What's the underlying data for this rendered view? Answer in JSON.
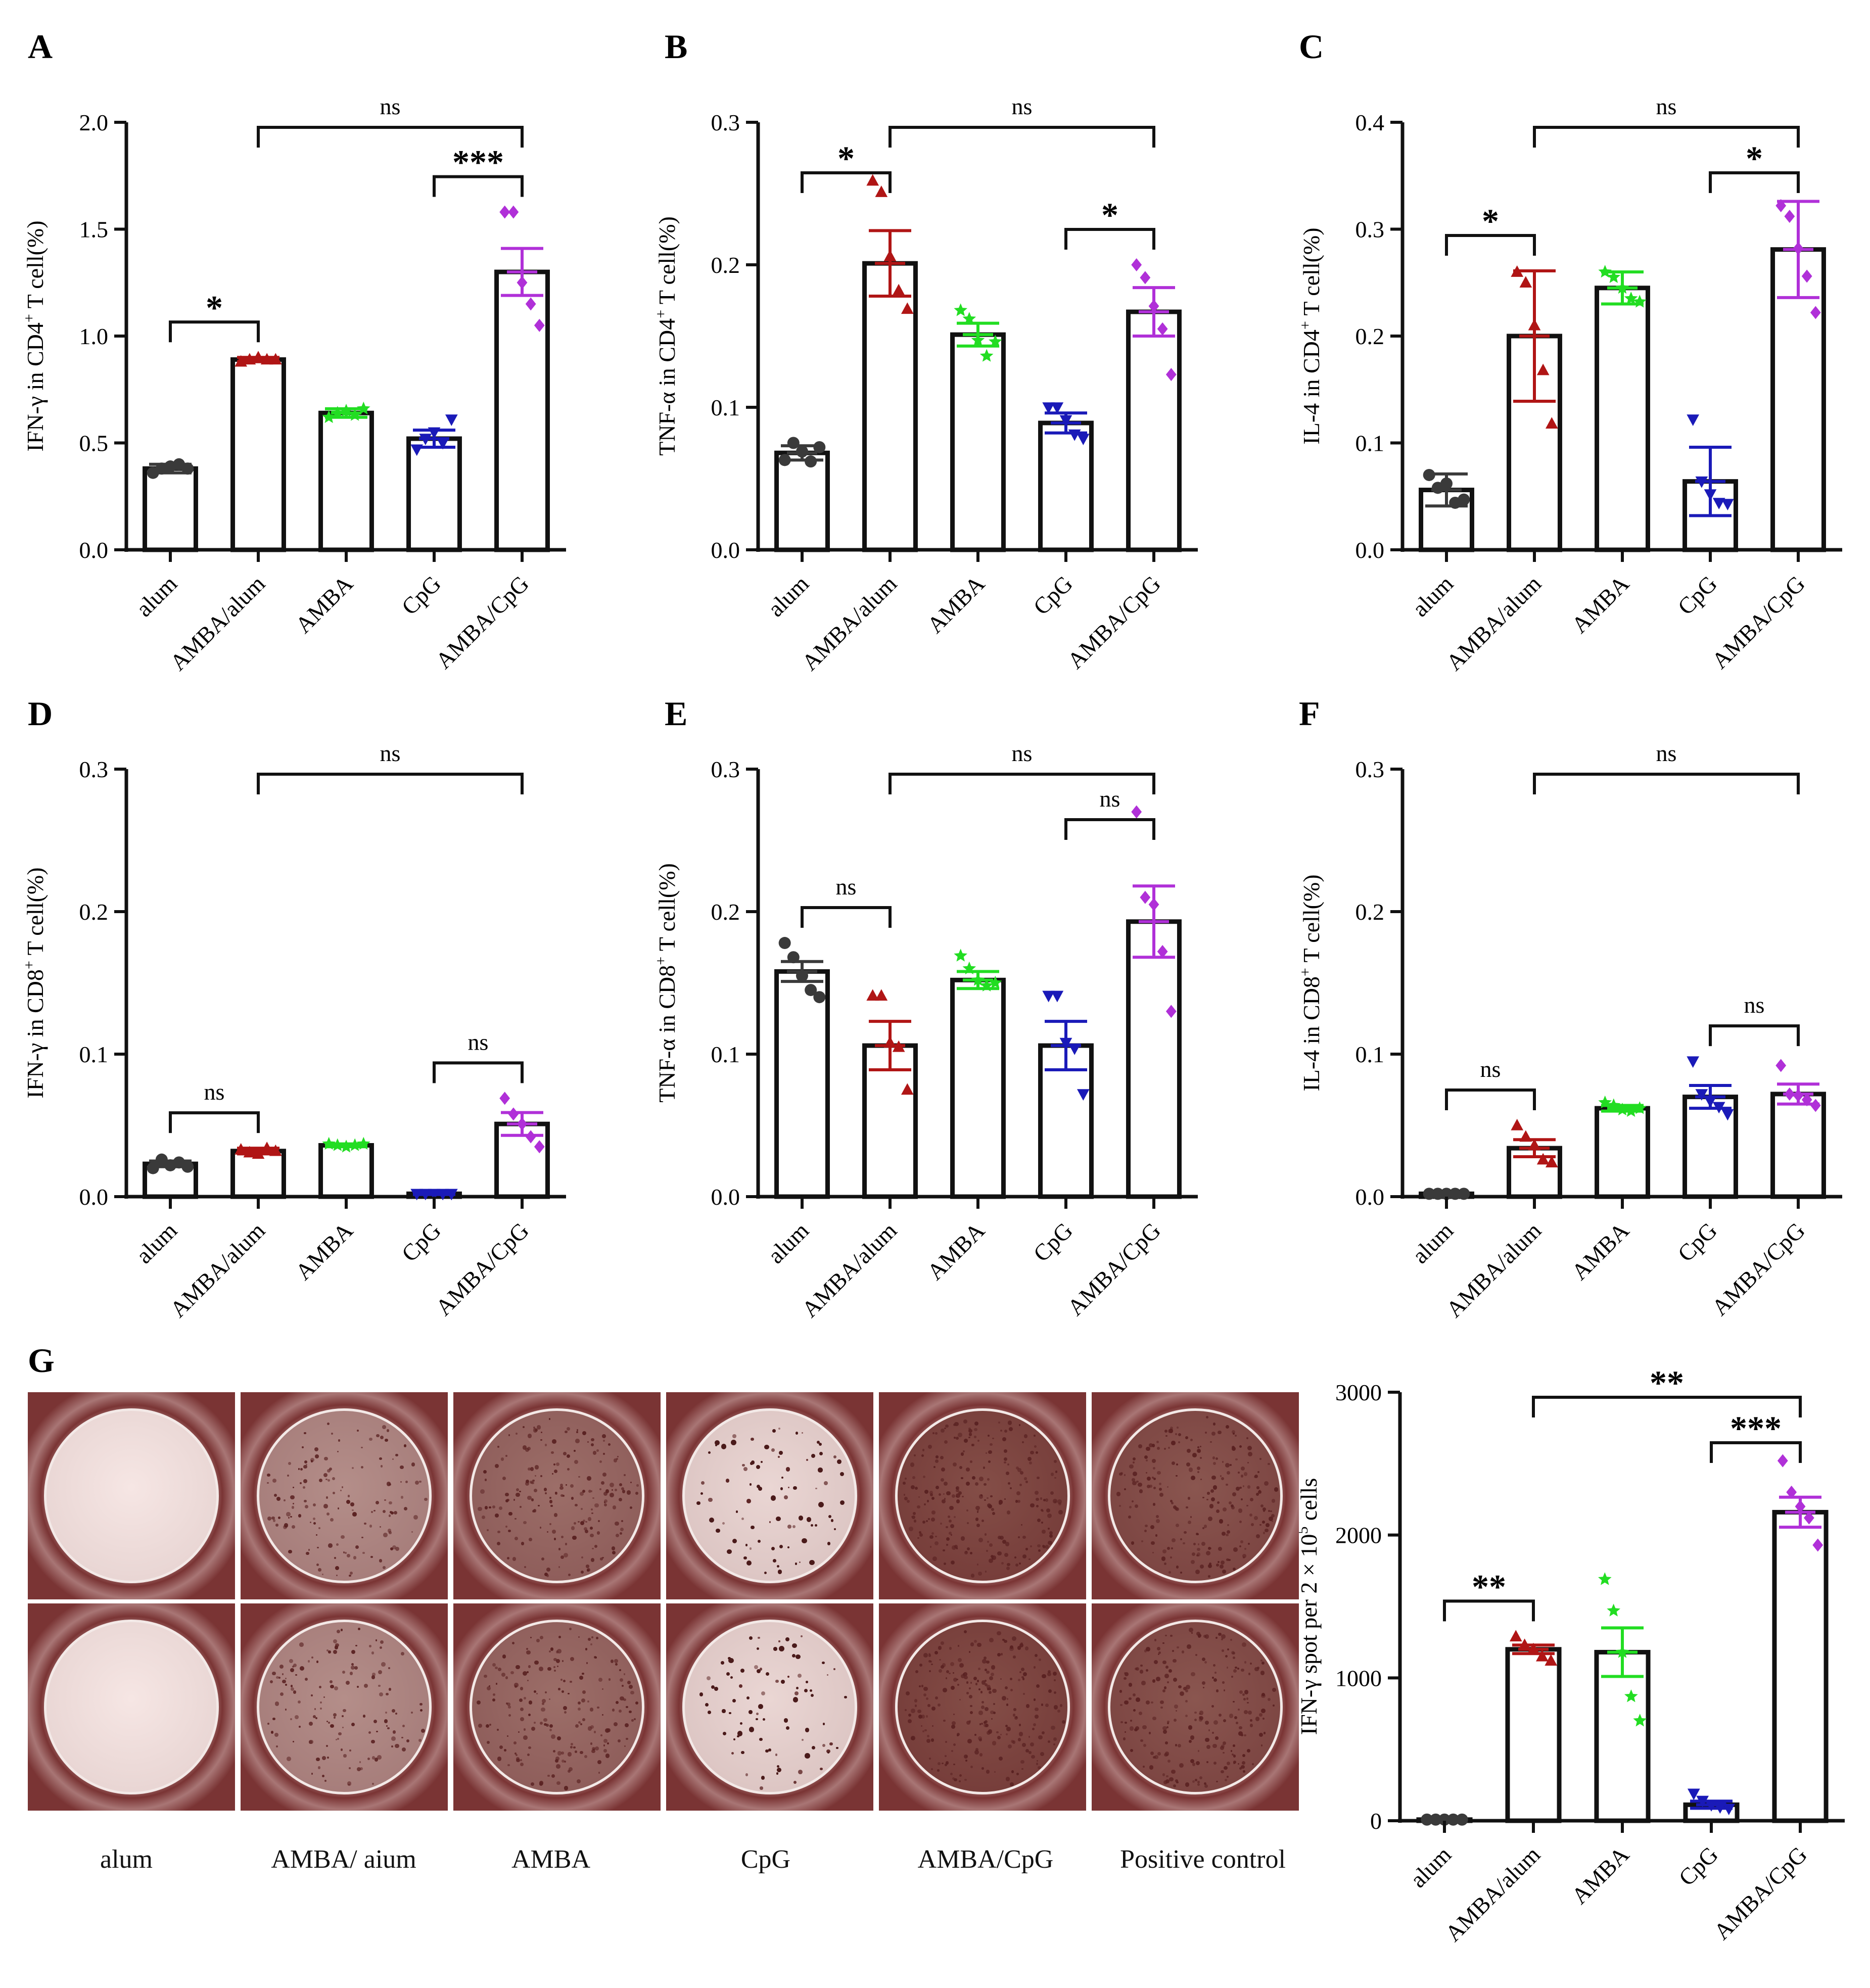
{
  "panels": [
    {
      "letter": "A",
      "ylabel_pre": "IFN-γ in CD4",
      "ylabel_sup": "+",
      "ylabel_post": " T cell(%)",
      "yticks": [
        "0.0",
        "0.5",
        "1.0",
        "1.5",
        "2.0"
      ],
      "comparisons": [
        {
          "label": "*",
          "from": 0,
          "to": 1
        },
        {
          "label": "***",
          "from": 3,
          "to": 4
        },
        {
          "label": "ns",
          "from": 1,
          "to": 4
        }
      ]
    },
    {
      "letter": "B",
      "ylabel_pre": "TNF-α in CD4",
      "ylabel_sup": "+",
      "ylabel_post": " T cell(%)",
      "yticks": [
        "0.0",
        "0.1",
        "0.2",
        "0.3"
      ],
      "comparisons": [
        {
          "label": "*",
          "from": 0,
          "to": 1
        },
        {
          "label": "*",
          "from": 3,
          "to": 4
        },
        {
          "label": "ns",
          "from": 1,
          "to": 4
        }
      ]
    },
    {
      "letter": "C",
      "ylabel_pre": "IL-4 in CD4",
      "ylabel_sup": "+",
      "ylabel_post": " T cell(%)",
      "yticks": [
        "0.0",
        "0.1",
        "0.2",
        "0.3",
        "0.4"
      ],
      "comparisons": [
        {
          "label": "*",
          "from": 0,
          "to": 1
        },
        {
          "label": "*",
          "from": 3,
          "to": 4
        },
        {
          "label": "ns",
          "from": 1,
          "to": 4
        }
      ]
    },
    {
      "letter": "D",
      "ylabel_pre": "IFN-γ in CD8",
      "ylabel_sup": "+",
      "ylabel_post": " T cell(%)",
      "yticks": [
        "0.0",
        "0.1",
        "0.2",
        "0.3"
      ],
      "comparisons": [
        {
          "label": "ns",
          "from": 0,
          "to": 1
        },
        {
          "label": "ns",
          "from": 3,
          "to": 4
        },
        {
          "label": "ns",
          "from": 1,
          "to": 4
        }
      ]
    },
    {
      "letter": "E",
      "ylabel_pre": "TNF-α in CD8",
      "ylabel_sup": "+",
      "ylabel_post": " T cell(%)",
      "yticks": [
        "0.0",
        "0.1",
        "0.2",
        "0.3"
      ],
      "comparisons": [
        {
          "label": "ns",
          "from": 0,
          "to": 1
        },
        {
          "label": "ns",
          "from": 3,
          "to": 4
        },
        {
          "label": "ns",
          "from": 1,
          "to": 4
        }
      ]
    },
    {
      "letter": "F",
      "ylabel_pre": "IL-4 in CD8",
      "ylabel_sup": "+",
      "ylabel_post": " T cell(%)",
      "yticks": [
        "0.0",
        "0.1",
        "0.2",
        "0.3"
      ],
      "comparisons": [
        {
          "label": "ns",
          "from": 0,
          "to": 1
        },
        {
          "label": "ns",
          "from": 3,
          "to": 4
        },
        {
          "label": "ns",
          "from": 1,
          "to": 4
        }
      ]
    },
    {
      "letter": "",
      "ylabel_pre": "IFN-γ spot per 2 × 10",
      "ylabel_sup": "5",
      "ylabel_post": " cells",
      "yticks": [
        "0",
        "1000",
        "2000",
        "3000"
      ],
      "comparisons": [
        {
          "label": "**",
          "from": 0,
          "to": 1
        },
        {
          "label": "***",
          "from": 3,
          "to": 4
        },
        {
          "label": "**",
          "from": 1,
          "to": 4
        }
      ]
    }
  ],
  "group_colors": [
    "#3a3a3a",
    "#b01515",
    "#22dd22",
    "#1a1ab8",
    "#b030d8"
  ],
  "marker_shapes": [
    "circle",
    "triangle",
    "star",
    "triangle-down",
    "diamond"
  ],
  "chart_data": [
    {
      "type": "bar",
      "categories": [
        "alum",
        "AMBA/alum",
        "AMBA",
        "CpG",
        "AMBA/CpG"
      ],
      "values": [
        0.38,
        0.89,
        0.64,
        0.52,
        1.3
      ],
      "errors": [
        0.02,
        0.01,
        0.02,
        0.04,
        0.11
      ],
      "points": [
        [
          0.36,
          0.38,
          0.39,
          0.4,
          0.38
        ],
        [
          0.88,
          0.89,
          0.9,
          0.89,
          0.89
        ],
        [
          0.62,
          0.64,
          0.65,
          0.63,
          0.66
        ],
        [
          0.47,
          0.52,
          0.55,
          0.5,
          0.61
        ],
        [
          1.58,
          1.58,
          1.25,
          1.15,
          1.05
        ]
      ],
      "ylabel": "IFN-γ in CD4+ T cell(%)",
      "ylim": [
        0,
        2.0
      ]
    },
    {
      "type": "bar",
      "categories": [
        "alum",
        "AMBA/alum",
        "AMBA",
        "CpG",
        "AMBA/CpG"
      ],
      "values": [
        0.068,
        0.201,
        0.151,
        0.089,
        0.167
      ],
      "errors": [
        0.005,
        0.023,
        0.008,
        0.007,
        0.017
      ],
      "points": [
        [
          0.063,
          0.075,
          0.069,
          0.062,
          0.072
        ],
        [
          0.259,
          0.251,
          0.206,
          0.182,
          0.169
        ],
        [
          0.168,
          0.162,
          0.147,
          0.136,
          0.146
        ],
        [
          0.1,
          0.1,
          0.091,
          0.081,
          0.078
        ],
        [
          0.2,
          0.191,
          0.171,
          0.155,
          0.123
        ]
      ],
      "ylabel": "TNF-α in CD4+ T cell(%)",
      "ylim": [
        0,
        0.3
      ]
    },
    {
      "type": "bar",
      "categories": [
        "alum",
        "AMBA/alum",
        "AMBA",
        "CpG",
        "AMBA/CpG"
      ],
      "values": [
        0.056,
        0.2,
        0.245,
        0.064,
        0.281
      ],
      "errors": [
        0.015,
        0.061,
        0.015,
        0.032,
        0.045
      ],
      "points": [
        [
          0.07,
          0.058,
          0.062,
          0.044,
          0.047
        ],
        [
          0.26,
          0.25,
          0.21,
          0.168,
          0.118
        ],
        [
          0.26,
          0.255,
          0.245,
          0.235,
          0.232
        ],
        [
          0.122,
          0.064,
          0.052,
          0.044,
          0.043
        ],
        [
          0.322,
          0.312,
          0.282,
          0.256,
          0.222
        ]
      ],
      "ylabel": "IL-4 in CD4+ T cell(%)",
      "ylim": [
        0,
        0.4
      ]
    },
    {
      "type": "bar",
      "categories": [
        "alum",
        "AMBA/alum",
        "AMBA",
        "CpG",
        "AMBA/CpG"
      ],
      "values": [
        0.023,
        0.032,
        0.036,
        0.002,
        0.051
      ],
      "errors": [
        0.002,
        0.002,
        0.001,
        0.0005,
        0.008
      ],
      "points": [
        [
          0.02,
          0.026,
          0.022,
          0.024,
          0.021
        ],
        [
          0.033,
          0.031,
          0.03,
          0.034,
          0.032
        ],
        [
          0.037,
          0.036,
          0.035,
          0.036,
          0.037
        ],
        [
          0.002,
          0.002,
          0.002,
          0.002,
          0.002
        ],
        [
          0.069,
          0.058,
          0.051,
          0.042,
          0.035
        ]
      ],
      "ylabel": "IFN-γ in CD8+ T cell(%)",
      "ylim": [
        0,
        0.3
      ]
    },
    {
      "type": "bar",
      "categories": [
        "alum",
        "AMBA/alum",
        "AMBA",
        "CpG",
        "AMBA/CpG"
      ],
      "values": [
        0.158,
        0.106,
        0.152,
        0.106,
        0.193
      ],
      "errors": [
        0.007,
        0.017,
        0.006,
        0.017,
        0.025
      ],
      "points": [
        [
          0.178,
          0.168,
          0.155,
          0.145,
          0.14
        ],
        [
          0.141,
          0.141,
          0.108,
          0.105,
          0.075
        ],
        [
          0.169,
          0.16,
          0.152,
          0.148,
          0.15
        ],
        [
          0.141,
          0.141,
          0.108,
          0.104,
          0.072
        ],
        [
          0.27,
          0.21,
          0.205,
          0.172,
          0.13
        ]
      ],
      "ylabel": "TNF-α in CD8+ T cell(%)",
      "ylim": [
        0,
        0.3
      ]
    },
    {
      "type": "bar",
      "categories": [
        "alum",
        "AMBA/alum",
        "AMBA",
        "CpG",
        "AMBA/CpG"
      ],
      "values": [
        0.002,
        0.034,
        0.062,
        0.07,
        0.072
      ],
      "errors": [
        0.0003,
        0.006,
        0.002,
        0.008,
        0.007
      ],
      "points": [
        [
          0.002,
          0.002,
          0.002,
          0.002,
          0.002
        ],
        [
          0.05,
          0.042,
          0.036,
          0.026,
          0.024
        ],
        [
          0.066,
          0.064,
          0.061,
          0.06,
          0.062
        ],
        [
          0.095,
          0.072,
          0.067,
          0.063,
          0.058
        ],
        [
          0.092,
          0.072,
          0.071,
          0.068,
          0.064
        ]
      ],
      "ylabel": "IL-4 in CD8+ T cell(%)",
      "ylim": [
        0,
        0.3
      ]
    },
    {
      "type": "bar",
      "categories": [
        "alum",
        "AMBA/alum",
        "AMBA",
        "CpG",
        "AMBA/CpG"
      ],
      "values": [
        8,
        1200,
        1180,
        112,
        2160
      ],
      "errors": [
        2,
        30,
        170,
        25,
        105
      ],
      "points": [
        [
          8,
          8,
          8,
          8,
          8
        ],
        [
          1290,
          1230,
          1200,
          1150,
          1120
        ],
        [
          1690,
          1470,
          1180,
          870,
          700
        ],
        [
          190,
          140,
          110,
          95,
          85
        ],
        [
          2520,
          2300,
          2200,
          2120,
          1930
        ]
      ],
      "ylabel": "IFN-γ spot per 2 × 105 cells",
      "ylim": [
        0,
        3000
      ]
    }
  ],
  "elispot": {
    "panel_letter": "G",
    "labels": [
      "alum",
      "AMBA/ aium",
      "AMBA",
      "CpG",
      "AMBA/CpG",
      "Positive control"
    ],
    "spot_density": [
      0.0,
      0.55,
      0.75,
      0.1,
      0.95,
      0.9
    ]
  }
}
